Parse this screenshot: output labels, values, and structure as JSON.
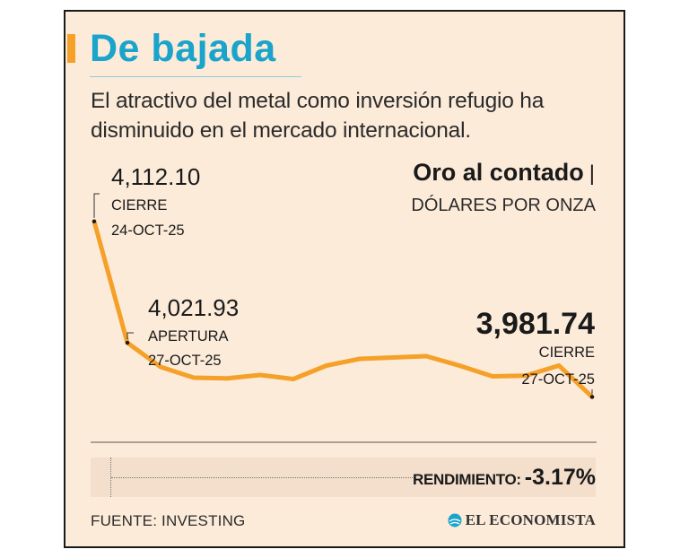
{
  "header": {
    "title": "De bajada",
    "subtitle": "El atractivo del metal como inversión refugio ha disminuido en el mercado internacional."
  },
  "series": {
    "name": "Oro al contado",
    "pipe": "|",
    "unit": "DÓLARES POR ONZA"
  },
  "chart_data": {
    "type": "line",
    "title": "Oro al contado",
    "ylabel": "DÓLARES POR ONZA",
    "ylim": [
      3940,
      4160
    ],
    "values": [
      4112.1,
      4021.93,
      4004,
      3996,
      3995.5,
      3998,
      3995,
      4005,
      4010,
      4011,
      4012,
      4005,
      3997,
      3997.5,
      4005,
      3981.74
    ],
    "annotations": [
      {
        "index": 0,
        "value": "4,112.10",
        "label": "CIERRE",
        "date": "24-OCT-25"
      },
      {
        "index": 1,
        "value": "4,021.93",
        "label": "APERTURA",
        "date": "27-OCT-25"
      },
      {
        "index": 15,
        "value": "3,981.74",
        "label": "CIERRE",
        "date": "27-OCT-25"
      }
    ]
  },
  "yield": {
    "label": "RENDIMIENTO:",
    "value": "-3.17%"
  },
  "footer": {
    "source": "FUENTE: INVESTING",
    "brand": "EL ECONOMISTA"
  },
  "colors": {
    "line": "#f5a028",
    "title": "#1aa4cc",
    "background": "#fcebd9"
  }
}
